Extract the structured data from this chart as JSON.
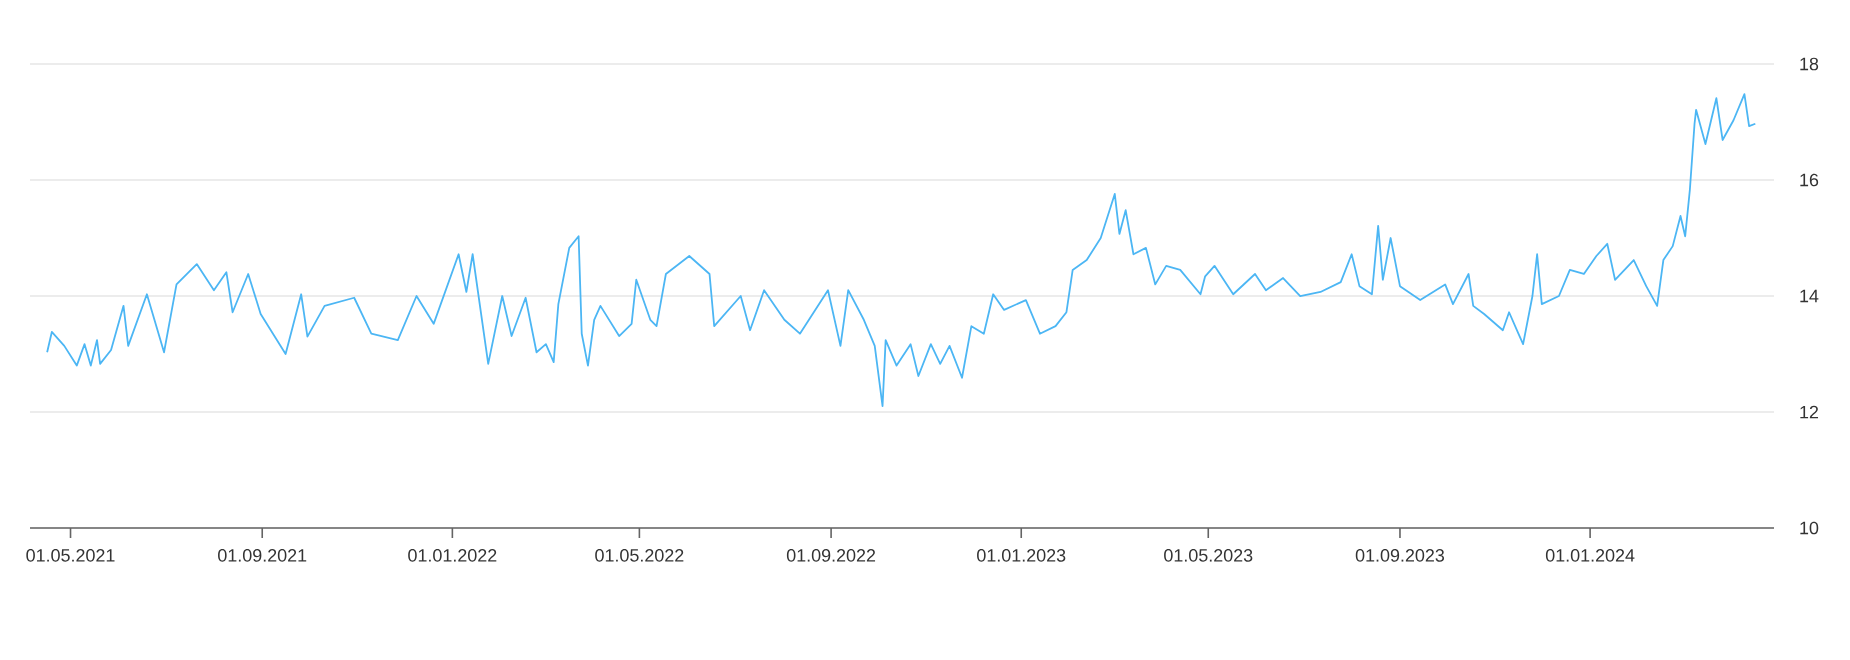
{
  "chart_data": {
    "type": "line",
    "x": [
      "2021-04-16",
      "2021-04-19",
      "2021-04-27",
      "2021-05-05",
      "2021-05-10",
      "2021-05-14",
      "2021-05-18",
      "2021-05-20",
      "2021-05-27",
      "2021-06-04",
      "2021-06-07",
      "2021-06-19",
      "2021-06-30",
      "2021-07-08",
      "2021-07-21",
      "2021-08-01",
      "2021-08-09",
      "2021-08-13",
      "2021-08-23",
      "2021-08-31",
      "2021-09-16",
      "2021-09-26",
      "2021-09-30",
      "2021-10-11",
      "2021-10-30",
      "2021-11-10",
      "2021-11-27",
      "2021-12-09",
      "2021-12-20",
      "2022-01-05",
      "2022-01-10",
      "2022-01-14",
      "2022-01-24",
      "2022-02-02",
      "2022-02-08",
      "2022-02-17",
      "2022-02-24",
      "2022-03-02",
      "2022-03-07",
      "2022-03-10",
      "2022-03-17",
      "2022-03-23",
      "2022-03-25",
      "2022-03-29",
      "2022-04-02",
      "2022-04-06",
      "2022-04-18",
      "2022-04-26",
      "2022-04-29",
      "2022-05-08",
      "2022-05-12",
      "2022-05-18",
      "2022-06-02",
      "2022-06-15",
      "2022-06-18",
      "2022-07-05",
      "2022-07-11",
      "2022-07-20",
      "2022-08-02",
      "2022-08-12",
      "2022-08-30",
      "2022-09-07",
      "2022-09-12",
      "2022-09-22",
      "2022-09-29",
      "2022-10-04",
      "2022-10-06",
      "2022-10-13",
      "2022-10-22",
      "2022-10-27",
      "2022-11-04",
      "2022-11-10",
      "2022-11-16",
      "2022-11-24",
      "2022-11-30",
      "2022-12-08",
      "2022-12-14",
      "2022-12-21",
      "2023-01-04",
      "2023-01-13",
      "2023-01-23",
      "2023-01-30",
      "2023-02-03",
      "2023-02-12",
      "2023-02-21",
      "2023-03-02",
      "2023-03-05",
      "2023-03-09",
      "2023-03-14",
      "2023-03-22",
      "2023-03-28",
      "2023-04-04",
      "2023-04-13",
      "2023-04-26",
      "2023-04-29",
      "2023-05-05",
      "2023-05-17",
      "2023-05-31",
      "2023-06-07",
      "2023-06-18",
      "2023-06-29",
      "2023-07-12",
      "2023-07-25",
      "2023-08-01",
      "2023-08-06",
      "2023-08-14",
      "2023-08-18",
      "2023-08-21",
      "2023-08-26",
      "2023-09-01",
      "2023-09-14",
      "2023-09-30",
      "2023-10-05",
      "2023-10-15",
      "2023-10-18",
      "2023-10-25",
      "2023-11-06",
      "2023-11-10",
      "2023-11-16",
      "2023-11-19",
      "2023-11-25",
      "2023-11-28",
      "2023-12-01",
      "2023-12-12",
      "2023-12-19",
      "2023-12-28",
      "2024-01-05",
      "2024-01-12",
      "2024-01-17",
      "2024-01-29",
      "2024-02-06",
      "2024-02-13",
      "2024-02-17",
      "2024-02-23",
      "2024-02-28",
      "2024-03-02",
      "2024-03-05",
      "2024-03-08",
      "2024-03-09",
      "2024-03-15",
      "2024-03-22",
      "2024-03-26",
      "2024-04-02",
      "2024-04-09",
      "2024-04-12",
      "2024-04-16"
    ],
    "values": [
      13.03,
      13.38,
      13.14,
      12.8,
      13.17,
      12.8,
      13.24,
      12.83,
      13.07,
      13.83,
      13.14,
      14.03,
      13.03,
      14.2,
      14.55,
      14.1,
      14.41,
      13.72,
      14.38,
      13.69,
      13.0,
      14.03,
      13.3,
      13.83,
      13.97,
      13.35,
      13.24,
      14.0,
      13.52,
      14.72,
      14.07,
      14.72,
      12.83,
      14.0,
      13.31,
      13.97,
      13.03,
      13.17,
      12.86,
      13.86,
      14.83,
      15.03,
      13.35,
      12.8,
      13.59,
      13.83,
      13.31,
      13.52,
      14.28,
      13.59,
      13.48,
      14.38,
      14.69,
      14.38,
      13.48,
      14.0,
      13.41,
      14.1,
      13.59,
      13.35,
      14.1,
      13.14,
      14.1,
      13.59,
      13.14,
      12.1,
      13.24,
      12.8,
      13.17,
      12.62,
      13.17,
      12.83,
      13.14,
      12.59,
      13.48,
      13.35,
      14.03,
      13.76,
      13.93,
      13.35,
      13.48,
      13.72,
      14.45,
      14.62,
      15.0,
      15.76,
      15.07,
      15.48,
      14.72,
      14.83,
      14.2,
      14.52,
      14.45,
      14.03,
      14.34,
      14.52,
      14.03,
      14.38,
      14.1,
      14.31,
      14.0,
      14.07,
      14.24,
      14.72,
      14.17,
      14.03,
      15.21,
      14.28,
      15.0,
      14.17,
      13.93,
      14.2,
      13.86,
      14.38,
      13.83,
      13.69,
      13.41,
      13.72,
      13.35,
      13.17,
      14.0,
      14.72,
      13.86,
      14.0,
      14.45,
      14.38,
      14.69,
      14.9,
      14.28,
      14.62,
      14.17,
      13.83,
      14.62,
      14.86,
      15.38,
      15.03,
      15.83,
      16.97,
      17.21,
      16.62,
      17.41,
      16.69,
      17.03,
      17.48,
      16.93,
      16.97
    ],
    "color": "#4cb6f4",
    "xlim": [
      "2021-04-05",
      "2024-04-28"
    ],
    "ylim": [
      10,
      18
    ],
    "xticks": [
      {
        "value": "2021-05-01",
        "label": "01.05.2021"
      },
      {
        "value": "2021-09-01",
        "label": "01.09.2021"
      },
      {
        "value": "2022-01-01",
        "label": "01.01.2022"
      },
      {
        "value": "2022-05-01",
        "label": "01.05.2022"
      },
      {
        "value": "2022-09-01",
        "label": "01.09.2022"
      },
      {
        "value": "2023-01-01",
        "label": "01.01.2023"
      },
      {
        "value": "2023-05-01",
        "label": "01.05.2023"
      },
      {
        "value": "2023-09-01",
        "label": "01.09.2023"
      },
      {
        "value": "2024-01-01",
        "label": "01.01.2024"
      }
    ],
    "yticks": [
      10,
      12,
      14,
      16,
      18
    ],
    "grid": "y"
  }
}
